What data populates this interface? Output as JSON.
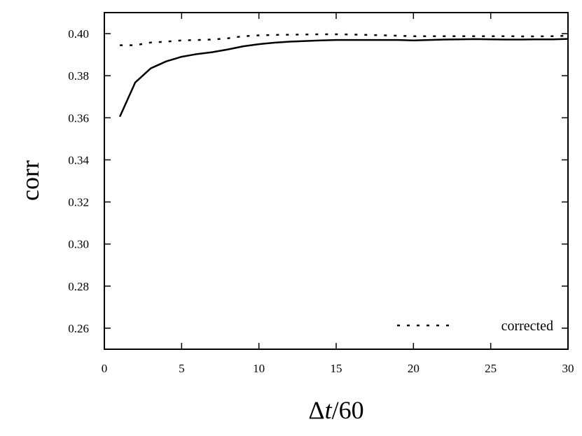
{
  "chart_data": {
    "type": "line",
    "title": "",
    "xlabel_prefix": "Δ",
    "xlabel_var": "t",
    "xlabel_suffix": "/60",
    "ylabel": "corr",
    "xlim": [
      0,
      30
    ],
    "ylim": [
      0.25,
      0.41
    ],
    "xticks": [
      0,
      5,
      10,
      15,
      20,
      25,
      30
    ],
    "yticks": [
      0.26,
      0.28,
      0.3,
      0.32,
      0.34,
      0.36,
      0.38,
      0.4
    ],
    "ytick_labels": [
      "0.26",
      "0.28",
      "0.30",
      "0.32",
      "0.34",
      "0.36",
      "0.38",
      "0.40"
    ],
    "grid": false,
    "legend_position": "bottom-right",
    "series": [
      {
        "name": "",
        "style": "solid",
        "color": "#000000",
        "x": [
          1,
          2,
          3,
          4,
          5,
          6,
          7,
          8,
          9,
          10,
          11,
          12,
          13,
          14,
          15,
          16,
          17,
          18,
          19,
          20,
          21,
          22,
          23,
          24,
          25,
          26,
          27,
          28,
          29,
          30
        ],
        "y": [
          0.3605,
          0.3768,
          0.3835,
          0.3868,
          0.389,
          0.3903,
          0.3912,
          0.3925,
          0.394,
          0.395,
          0.3957,
          0.3962,
          0.3965,
          0.3968,
          0.397,
          0.397,
          0.397,
          0.397,
          0.397,
          0.3968,
          0.397,
          0.3972,
          0.3973,
          0.3974,
          0.3973,
          0.3972,
          0.3972,
          0.3973,
          0.3973,
          0.3975
        ]
      },
      {
        "name": "corrected",
        "style": "dotted",
        "color": "#000000",
        "x": [
          1,
          2,
          3,
          4,
          5,
          6,
          7,
          8,
          9,
          10,
          11,
          12,
          13,
          14,
          15,
          16,
          17,
          18,
          19,
          20,
          21,
          22,
          23,
          24,
          25,
          26,
          27,
          28,
          29,
          30
        ],
        "y": [
          0.3945,
          0.3945,
          0.3958,
          0.3962,
          0.3968,
          0.397,
          0.3972,
          0.3978,
          0.3988,
          0.3992,
          0.3994,
          0.3995,
          0.3996,
          0.3997,
          0.3997,
          0.3996,
          0.3994,
          0.3992,
          0.399,
          0.3988,
          0.3988,
          0.3988,
          0.3988,
          0.3988,
          0.3988,
          0.3988,
          0.3987,
          0.3987,
          0.3988,
          0.399
        ]
      }
    ]
  }
}
